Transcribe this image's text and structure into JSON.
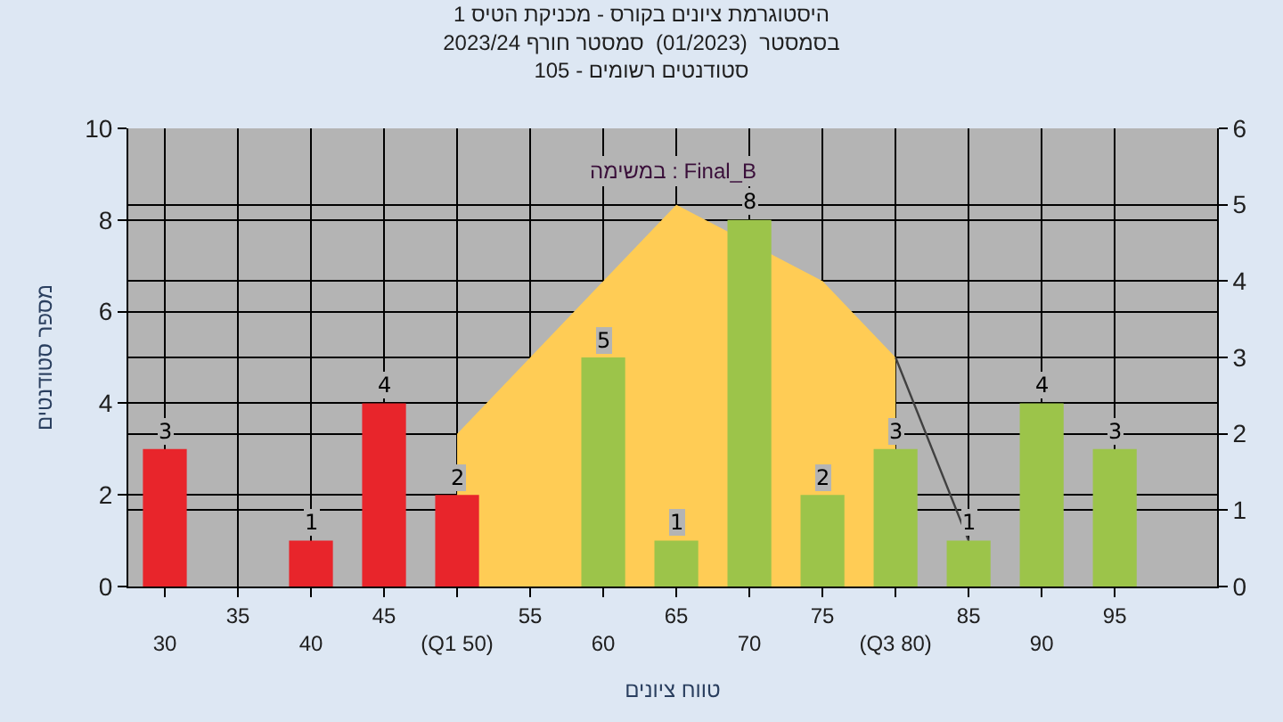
{
  "chart_data": {
    "type": "bar",
    "title": "היסטוגרמת ציונים בקורס - מכניקת הטיס 1",
    "subtitle": "בסמסטר  (01/2023)  סמסטר חורף 2023/24\nסטודנטים רשומים - 105",
    "xlabel": "טווח ציונים",
    "ylabel": "מספר סטודנטים",
    "annotations": [
      "במשימה : Final_B"
    ],
    "categories": [
      "30",
      "35",
      "40",
      "45",
      "(Q1 50)",
      "55",
      "60",
      "65",
      "70",
      "75",
      "(Q3 80)",
      "85",
      "90",
      "95"
    ],
    "series": [
      {
        "type": "area",
        "axis": "y2",
        "color": "#ffcc55",
        "x": [
          "(Q1 50)",
          "60",
          "65",
          "70",
          "75",
          "(Q3 80)"
        ],
        "values": [
          2,
          null,
          5,
          null,
          4,
          3
        ]
      },
      {
        "type": "line",
        "axis": "y2",
        "color": "#404040",
        "x": [
          "(Q3 80)",
          "85"
        ],
        "values": [
          3,
          0.6
        ]
      },
      {
        "colors": [
          "#e8252b",
          "#e8252b",
          "#e8252b",
          "#e8252b",
          "#e8252b",
          "#e8252b",
          "#9cc44a",
          "#9cc44a",
          "#9cc44a",
          "#9cc44a",
          "#9cc44a",
          "#9cc44a",
          "#9cc44a",
          "#9cc44a"
        ],
        "values": [
          3,
          null,
          1,
          4,
          2,
          null,
          5,
          1,
          8,
          2,
          3,
          1,
          4,
          3
        ],
        "value_labels": [
          "3",
          null,
          "1",
          "4",
          "2",
          null,
          "5",
          "1",
          "8",
          "2",
          "3",
          "1",
          "4",
          "3"
        ]
      }
    ],
    "ylim": [
      0,
      10
    ],
    "yticks": [
      0,
      2,
      4,
      6,
      8,
      10
    ],
    "y2lim": [
      0,
      6
    ],
    "y2ticks": [
      0,
      1,
      2,
      3,
      4,
      5,
      6
    ],
    "grid": true,
    "legend": false
  }
}
